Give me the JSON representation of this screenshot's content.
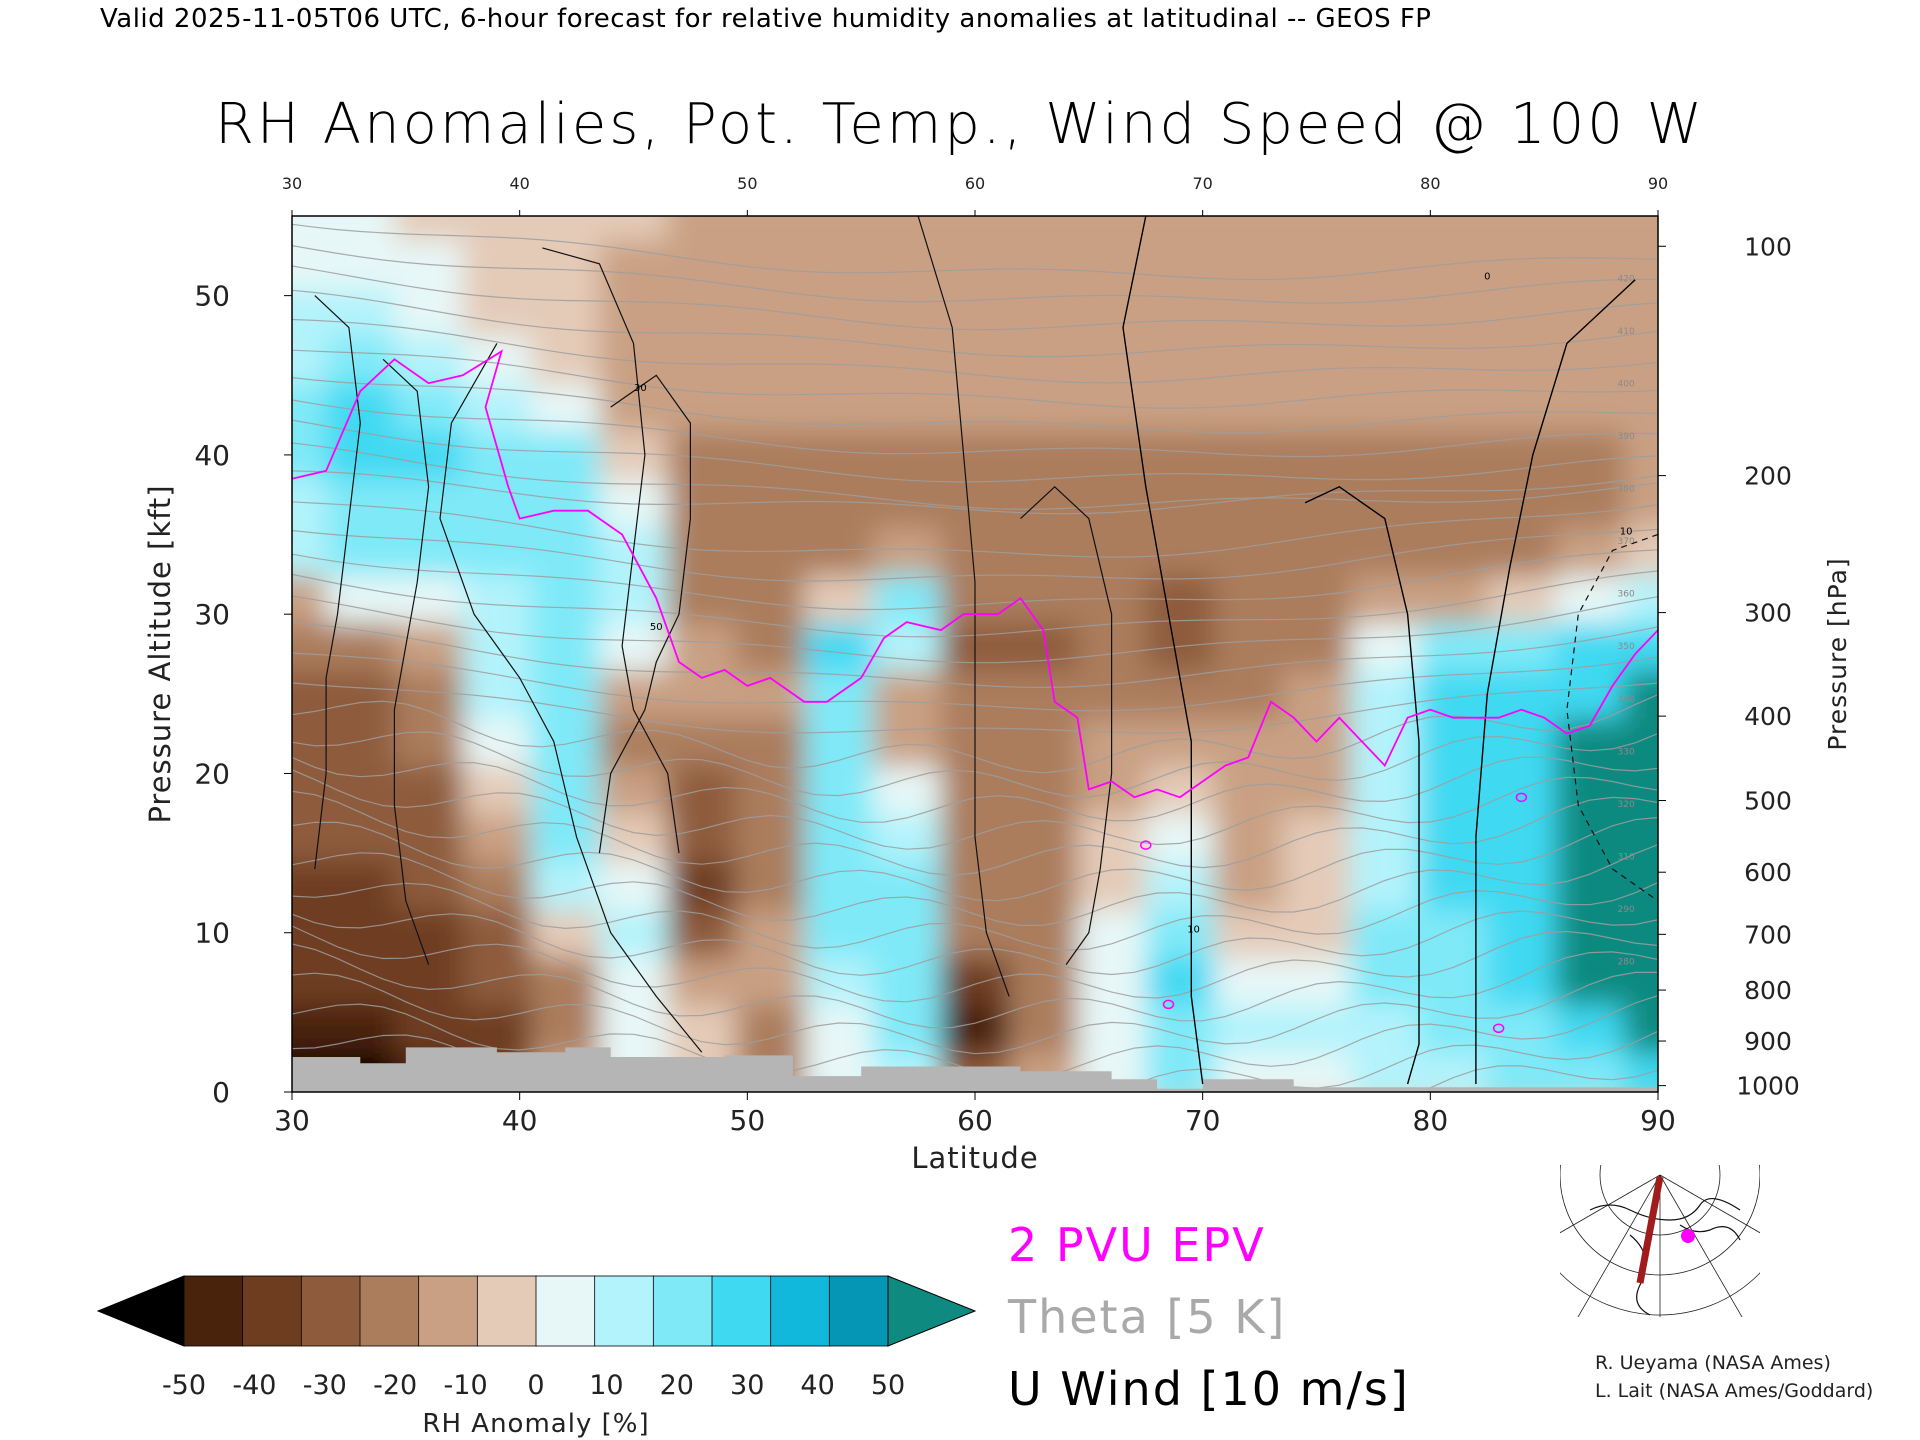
{
  "header": {
    "valid_line": "Valid 2025-11-05T06 UTC, 6-hour forecast for relative humidity anomalies at latitudinal -- GEOS FP",
    "title": "RH Anomalies, Pot. Temp., Wind Speed @ 100 W"
  },
  "chart_data": {
    "type": "heatmap",
    "title": "RH Anomalies, Pot. Temp., Wind Speed @ 100 W",
    "xlabel": "Latitude",
    "ylabel_left": "Pressure Altitude [kft]",
    "ylabel_right": "Pressure [hPa]",
    "xlim": [
      30,
      90
    ],
    "ylim": [
      0,
      55
    ],
    "x_ticks": [
      30,
      40,
      50,
      60,
      70,
      80,
      90
    ],
    "y_ticks_left": [
      0,
      10,
      20,
      30,
      40,
      50
    ],
    "y_ticks_right": [
      {
        "label": "100",
        "kft": 53.1
      },
      {
        "label": "200",
        "kft": 38.7
      },
      {
        "label": "300",
        "kft": 30.1
      },
      {
        "label": "400",
        "kft": 23.6
      },
      {
        "label": "500",
        "kft": 18.3
      },
      {
        "label": "600",
        "kft": 13.8
      },
      {
        "label": "700",
        "kft": 9.9
      },
      {
        "label": "800",
        "kft": 6.4
      },
      {
        "label": "900",
        "kft": 3.2
      },
      {
        "label": "1000",
        "kft": 0.4
      }
    ],
    "colorbar": {
      "label": "RH Anomaly [%]",
      "ticks": [
        "-50",
        "-40",
        "-30",
        "-20",
        "-10",
        "0",
        "10",
        "20",
        "30",
        "40",
        "50"
      ],
      "colors": [
        "#000000",
        "#4a230c",
        "#6e3d20",
        "#8e5c3c",
        "#ab7d5d",
        "#c9a083",
        "#e4cbb8",
        "#e7f7f7",
        "#b3f3fb",
        "#7fe9f8",
        "#3fd9f2",
        "#11b8da",
        "#0596b5",
        "#0f8a80"
      ]
    },
    "rh_grid_lat": [
      30,
      33,
      36,
      39,
      42,
      45,
      48,
      51,
      54,
      57,
      60,
      63,
      66,
      69,
      72,
      75,
      78,
      81,
      84,
      87,
      90
    ],
    "rh_grid_kft": [
      1,
      4,
      7,
      10,
      13,
      16,
      19,
      22,
      25,
      28,
      31,
      34,
      37,
      40,
      43,
      46,
      49,
      52,
      55
    ],
    "rh_anomaly": [
      [
        -50,
        -50,
        -45,
        -40,
        -10,
        10,
        5,
        -15,
        10,
        25,
        -30,
        -5,
        10,
        30,
        10,
        15,
        20,
        25,
        30,
        35,
        40
      ],
      [
        -45,
        -45,
        -40,
        -35,
        -20,
        15,
        0,
        -20,
        15,
        30,
        -45,
        -20,
        10,
        35,
        20,
        20,
        25,
        30,
        35,
        45,
        50
      ],
      [
        -40,
        -40,
        -40,
        -30,
        -15,
        10,
        -10,
        -10,
        25,
        35,
        -40,
        -20,
        15,
        40,
        15,
        15,
        30,
        35,
        40,
        55,
        55
      ],
      [
        -35,
        -40,
        -35,
        -25,
        5,
        20,
        -30,
        -5,
        30,
        35,
        -20,
        -20,
        10,
        30,
        0,
        5,
        30,
        35,
        40,
        55,
        55
      ],
      [
        -35,
        -35,
        -30,
        -20,
        20,
        10,
        -35,
        -15,
        35,
        30,
        -20,
        -15,
        5,
        20,
        -5,
        5,
        25,
        40,
        45,
        55,
        55
      ],
      [
        -30,
        -30,
        -30,
        -10,
        30,
        0,
        -30,
        -20,
        35,
        20,
        -15,
        -15,
        0,
        10,
        -10,
        0,
        25,
        45,
        45,
        55,
        55
      ],
      [
        -30,
        -30,
        -25,
        0,
        30,
        -10,
        -25,
        -20,
        30,
        10,
        -15,
        -15,
        -5,
        0,
        -10,
        -10,
        25,
        45,
        45,
        55,
        55
      ],
      [
        -30,
        -30,
        -20,
        10,
        30,
        -20,
        -20,
        -20,
        30,
        -5,
        -20,
        -15,
        -10,
        -10,
        -10,
        -10,
        25,
        40,
        40,
        50,
        55
      ],
      [
        -25,
        -25,
        -15,
        20,
        30,
        -10,
        -10,
        -10,
        35,
        -10,
        -20,
        -15,
        -15,
        -15,
        -15,
        -10,
        25,
        40,
        40,
        45,
        50
      ],
      [
        -20,
        -20,
        -10,
        20,
        35,
        10,
        -5,
        -15,
        40,
        20,
        -25,
        -25,
        -20,
        -25,
        -20,
        -15,
        15,
        30,
        30,
        40,
        45
      ],
      [
        -10,
        10,
        15,
        25,
        35,
        20,
        -15,
        -15,
        0,
        30,
        -20,
        -20,
        -15,
        -25,
        -20,
        -15,
        -10,
        -5,
        0,
        10,
        20
      ],
      [
        20,
        30,
        30,
        30,
        35,
        25,
        -15,
        -20,
        -20,
        -10,
        -15,
        -15,
        -15,
        -20,
        -15,
        -15,
        -15,
        -15,
        -15,
        -10,
        0
      ],
      [
        25,
        35,
        35,
        35,
        35,
        10,
        -15,
        -20,
        -20,
        -15,
        -15,
        -15,
        -15,
        -15,
        -15,
        -15,
        -15,
        -15,
        -15,
        -15,
        -10
      ],
      [
        30,
        40,
        40,
        30,
        30,
        0,
        -15,
        -15,
        -15,
        -15,
        -15,
        -15,
        -15,
        -15,
        -15,
        -15,
        -15,
        -15,
        -15,
        -15,
        -10
      ],
      [
        30,
        40,
        35,
        20,
        10,
        -5,
        -10,
        -10,
        -10,
        -10,
        -10,
        -10,
        -10,
        -10,
        -10,
        -10,
        -10,
        -10,
        -10,
        -10,
        -5
      ],
      [
        25,
        30,
        25,
        10,
        0,
        -5,
        -5,
        -10,
        -10,
        -10,
        -10,
        -10,
        -10,
        -10,
        -10,
        -10,
        -10,
        -10,
        -10,
        -10,
        -5
      ],
      [
        20,
        20,
        15,
        5,
        0,
        -5,
        -5,
        -5,
        -5,
        -10,
        -10,
        -10,
        -10,
        -10,
        -10,
        -10,
        -10,
        -10,
        -10,
        -5,
        -5
      ],
      [
        15,
        15,
        10,
        5,
        0,
        -5,
        -5,
        -5,
        -5,
        -5,
        -5,
        -5,
        -5,
        -5,
        -5,
        -5,
        -5,
        -5,
        -5,
        -5,
        -5
      ],
      [
        10,
        10,
        5,
        5,
        0,
        0,
        -5,
        -5,
        -5,
        -5,
        -5,
        -5,
        -5,
        -5,
        -5,
        -5,
        -5,
        -5,
        -5,
        -5,
        -5
      ]
    ],
    "epv_2pvu": {
      "name": "2 PVU EPV",
      "color": "#ff00ff",
      "points": [
        [
          30,
          38.5
        ],
        [
          31.5,
          39
        ],
        [
          33,
          44
        ],
        [
          34.5,
          46
        ],
        [
          36,
          44.5
        ],
        [
          37.5,
          45
        ],
        [
          39.2,
          46.5
        ],
        [
          38.5,
          43
        ],
        [
          39.5,
          38
        ],
        [
          40,
          36
        ],
        [
          41.5,
          36.5
        ],
        [
          43,
          36.5
        ],
        [
          44.5,
          35
        ],
        [
          46,
          31
        ],
        [
          47,
          27
        ],
        [
          48,
          26
        ],
        [
          49,
          26.5
        ],
        [
          50,
          25.5
        ],
        [
          51,
          26
        ],
        [
          52.5,
          24.5
        ],
        [
          53.5,
          24.5
        ],
        [
          55,
          26
        ],
        [
          56,
          28.5
        ],
        [
          57,
          29.5
        ],
        [
          58.5,
          29
        ],
        [
          59.5,
          30
        ],
        [
          61,
          30
        ],
        [
          62,
          31
        ],
        [
          63,
          29
        ],
        [
          63.5,
          24.5
        ],
        [
          64.5,
          23.5
        ],
        [
          65,
          19
        ],
        [
          66,
          19.5
        ],
        [
          67,
          18.5
        ],
        [
          68,
          19
        ],
        [
          69,
          18.5
        ],
        [
          70,
          19.5
        ],
        [
          71,
          20.5
        ],
        [
          72,
          21
        ],
        [
          73,
          24.5
        ],
        [
          74,
          23.5
        ],
        [
          75,
          22
        ],
        [
          76,
          23.5
        ],
        [
          77,
          22
        ],
        [
          78,
          20.5
        ],
        [
          79,
          23.5
        ],
        [
          80,
          24
        ],
        [
          81,
          23.5
        ],
        [
          82,
          23.5
        ],
        [
          83,
          23.5
        ],
        [
          84,
          24
        ],
        [
          85,
          23.5
        ],
        [
          86,
          22.5
        ],
        [
          87,
          23
        ],
        [
          88,
          25.5
        ],
        [
          89,
          27.5
        ],
        [
          90,
          29
        ]
      ]
    },
    "zero_wind_lines": [
      [
        [
          67.5,
          55
        ],
        [
          66.5,
          48
        ],
        [
          67.5,
          38
        ],
        [
          68.5,
          30
        ],
        [
          69.5,
          22
        ],
        [
          69.5,
          12
        ],
        [
          69.5,
          6
        ],
        [
          70,
          0.5
        ]
      ],
      [
        [
          74.5,
          37
        ],
        [
          76,
          38
        ],
        [
          78,
          36
        ],
        [
          79,
          30
        ],
        [
          79.5,
          22
        ],
        [
          79.5,
          12
        ],
        [
          79.5,
          3
        ],
        [
          79,
          0.5
        ]
      ],
      [
        [
          89,
          51
        ],
        [
          86,
          47
        ],
        [
          84.5,
          40
        ],
        [
          83.5,
          33
        ],
        [
          82.5,
          25
        ],
        [
          82,
          16
        ],
        [
          82,
          8
        ],
        [
          82,
          0.5
        ]
      ]
    ],
    "u_wind_contour_levels": [
      "0",
      "10",
      "30",
      "50"
    ],
    "theta_contour_labels": [
      "280",
      "290",
      "310",
      "320",
      "330",
      "340",
      "350",
      "360",
      "370",
      "380",
      "390",
      "400",
      "410",
      "420"
    ],
    "legend": [
      {
        "label": "2 PVU EPV",
        "color": "#ff00ff"
      },
      {
        "label": "Theta [5 K]",
        "color": "#a9a9a9"
      },
      {
        "label": "U Wind [10 m/s]",
        "color": "#000000"
      }
    ],
    "grid": false
  },
  "legend_labels": {
    "epv": "2 PVU EPV",
    "theta": "Theta [5 K]",
    "wind": "U Wind [10 m/s]"
  },
  "credits": {
    "line1": "R. Ueyama (NASA Ames)",
    "line2": "L. Lait (NASA Ames/Goddard)"
  },
  "map_inset": {
    "transect_color": "#a01c1c",
    "marker_color": "#ff00ff",
    "icon": "polar-projection-map"
  }
}
